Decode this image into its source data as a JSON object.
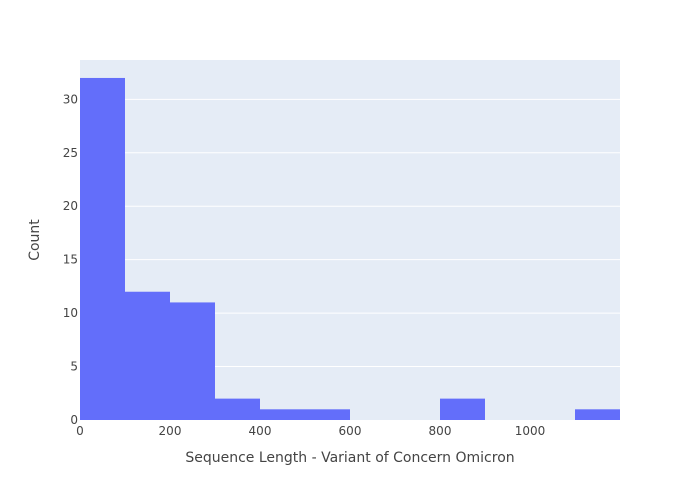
{
  "chart_data": {
    "type": "bar",
    "title": "",
    "xlabel": "Sequence Length - Variant of Concern Omicron",
    "ylabel": "Count",
    "bin_width": 100,
    "bins": [
      {
        "start": 0,
        "end": 100,
        "count": 32
      },
      {
        "start": 100,
        "end": 200,
        "count": 12
      },
      {
        "start": 200,
        "end": 300,
        "count": 11
      },
      {
        "start": 300,
        "end": 400,
        "count": 2
      },
      {
        "start": 400,
        "end": 500,
        "count": 1
      },
      {
        "start": 500,
        "end": 600,
        "count": 1
      },
      {
        "start": 600,
        "end": 700,
        "count": 0
      },
      {
        "start": 700,
        "end": 800,
        "count": 0
      },
      {
        "start": 800,
        "end": 900,
        "count": 2
      },
      {
        "start": 900,
        "end": 1000,
        "count": 0
      },
      {
        "start": 1000,
        "end": 1100,
        "count": 0
      },
      {
        "start": 1100,
        "end": 1200,
        "count": 1
      }
    ],
    "xlim": [
      0,
      1200
    ],
    "ylim": [
      0,
      33.68
    ],
    "x_ticks": [
      0,
      200,
      400,
      600,
      800,
      1000
    ],
    "y_ticks": [
      0,
      5,
      10,
      15,
      20,
      25,
      30
    ],
    "grid": true,
    "legend": "none",
    "colors": {
      "bar": "#636efa",
      "plot_bg": "#e5ecf6",
      "grid": "#ffffff",
      "text": "#444444"
    }
  }
}
